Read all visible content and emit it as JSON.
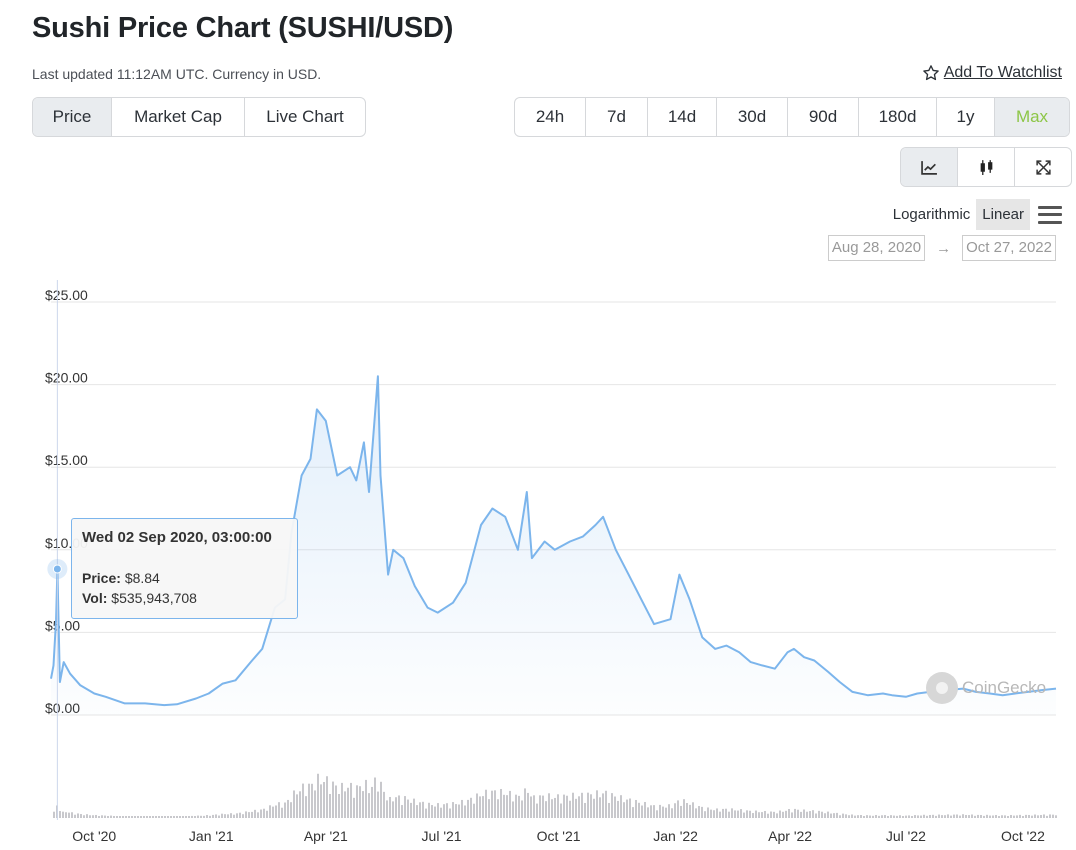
{
  "header": {
    "title": "Sushi Price Chart (SUSHI/USD)",
    "updated": "Last updated 11:12AM UTC. Currency in USD.",
    "watchlist_label": "Add To Watchlist"
  },
  "tabs": [
    {
      "label": "Price",
      "active": true
    },
    {
      "label": "Market Cap",
      "active": false
    },
    {
      "label": "Live Chart",
      "active": false
    }
  ],
  "ranges": [
    {
      "label": "24h",
      "active": false
    },
    {
      "label": "7d",
      "active": false
    },
    {
      "label": "14d",
      "active": false
    },
    {
      "label": "30d",
      "active": false
    },
    {
      "label": "90d",
      "active": false
    },
    {
      "label": "180d",
      "active": false
    },
    {
      "label": "1y",
      "active": false
    },
    {
      "label": "Max",
      "active": true
    }
  ],
  "tools": [
    {
      "name": "line-chart-icon",
      "active": true
    },
    {
      "name": "candlestick-icon",
      "active": false
    },
    {
      "name": "fullscreen-icon",
      "active": false
    }
  ],
  "scale": {
    "log_label": "Logarithmic",
    "linear_label": "Linear",
    "selected": "Linear"
  },
  "date_range": {
    "from": "Aug 28, 2020",
    "arrow": "→",
    "to": "Oct 27, 2022"
  },
  "tooltip": {
    "date": "Wed 02 Sep 2020, 03:00:00",
    "price_label": "Price:",
    "price_value": "$8.84",
    "vol_label": "Vol:",
    "vol_value": "$535,943,708"
  },
  "watermark": "CoinGecko",
  "colors": {
    "line": "#7cb5ec",
    "accent_green": "#8dc647",
    "volume": "#c8c8cc",
    "grid": "#e6e6e6"
  },
  "chart_data": {
    "type": "area",
    "title": "",
    "ylabel": "",
    "ylim": [
      0,
      25
    ],
    "y_ticks": [
      "$0.00",
      "$5.00",
      "$10.00",
      "$15.00",
      "$20.00",
      "$25.00"
    ],
    "x_ticks": [
      "Oct '20",
      "Jan '21",
      "Apr '21",
      "Jul '21",
      "Oct '21",
      "Jan '22",
      "Apr '22",
      "Jul '22",
      "Oct '22"
    ],
    "x_start": "2020-08-28",
    "x_end": "2022-10-27",
    "grid": true,
    "series": [
      {
        "type": "area",
        "x": [
          "2020-08-28",
          "2020-08-30",
          "2020-09-01",
          "2020-09-02",
          "2020-09-04",
          "2020-09-07",
          "2020-09-12",
          "2020-09-20",
          "2020-10-01",
          "2020-10-10",
          "2020-10-25",
          "2020-11-10",
          "2020-11-25",
          "2020-12-05",
          "2020-12-20",
          "2020-12-30",
          "2021-01-10",
          "2021-01-20",
          "2021-02-01",
          "2021-02-10",
          "2021-02-20",
          "2021-02-28",
          "2021-03-05",
          "2021-03-13",
          "2021-03-20",
          "2021-03-25",
          "2021-04-01",
          "2021-04-10",
          "2021-04-20",
          "2021-04-25",
          "2021-05-01",
          "2021-05-05",
          "2021-05-12",
          "2021-05-14",
          "2021-05-20",
          "2021-05-24",
          "2021-06-01",
          "2021-06-10",
          "2021-06-20",
          "2021-06-28",
          "2021-07-10",
          "2021-07-20",
          "2021-08-01",
          "2021-08-10",
          "2021-08-20",
          "2021-08-30",
          "2021-09-06",
          "2021-09-10",
          "2021-09-20",
          "2021-09-28",
          "2021-10-10",
          "2021-10-20",
          "2021-10-30",
          "2021-11-05",
          "2021-11-15",
          "2021-11-25",
          "2021-12-05",
          "2021-12-15",
          "2021-12-28",
          "2022-01-04",
          "2022-01-12",
          "2022-01-22",
          "2022-02-01",
          "2022-02-10",
          "2022-02-20",
          "2022-03-01",
          "2022-03-10",
          "2022-03-20",
          "2022-03-30",
          "2022-04-04",
          "2022-04-12",
          "2022-04-20",
          "2022-05-01",
          "2022-05-10",
          "2022-05-20",
          "2022-06-01",
          "2022-06-13",
          "2022-06-20",
          "2022-07-01",
          "2022-07-10",
          "2022-07-20",
          "2022-08-01",
          "2022-08-15",
          "2022-08-25",
          "2022-09-05",
          "2022-09-15",
          "2022-09-25",
          "2022-10-05",
          "2022-10-15",
          "2022-10-27"
        ],
        "values": [
          2.2,
          3.0,
          5.8,
          8.84,
          2.0,
          3.2,
          2.5,
          1.8,
          1.3,
          1.1,
          0.7,
          0.7,
          0.6,
          0.65,
          1.0,
          1.3,
          1.9,
          2.1,
          3.2,
          4.0,
          6.5,
          7.0,
          11.0,
          14.5,
          15.5,
          18.5,
          17.8,
          14.5,
          15.0,
          14.2,
          16.5,
          13.5,
          20.5,
          14.5,
          8.5,
          10.0,
          9.5,
          7.8,
          6.5,
          6.2,
          6.8,
          8.0,
          11.5,
          12.5,
          12.0,
          10.0,
          13.5,
          9.5,
          10.5,
          10.0,
          10.5,
          10.8,
          11.5,
          12.0,
          10.0,
          8.5,
          7.0,
          5.5,
          5.8,
          8.5,
          7.0,
          4.7,
          4.0,
          4.2,
          3.8,
          3.2,
          3.0,
          2.8,
          3.8,
          4.0,
          3.5,
          3.3,
          2.6,
          2.0,
          1.4,
          1.2,
          1.3,
          1.2,
          1.1,
          1.3,
          1.4,
          1.5,
          1.6,
          1.4,
          1.3,
          1.2,
          1.3,
          1.4,
          1.5,
          1.6
        ]
      }
    ],
    "hover_point": {
      "x": "2020-09-02",
      "y": 8.84
    }
  }
}
